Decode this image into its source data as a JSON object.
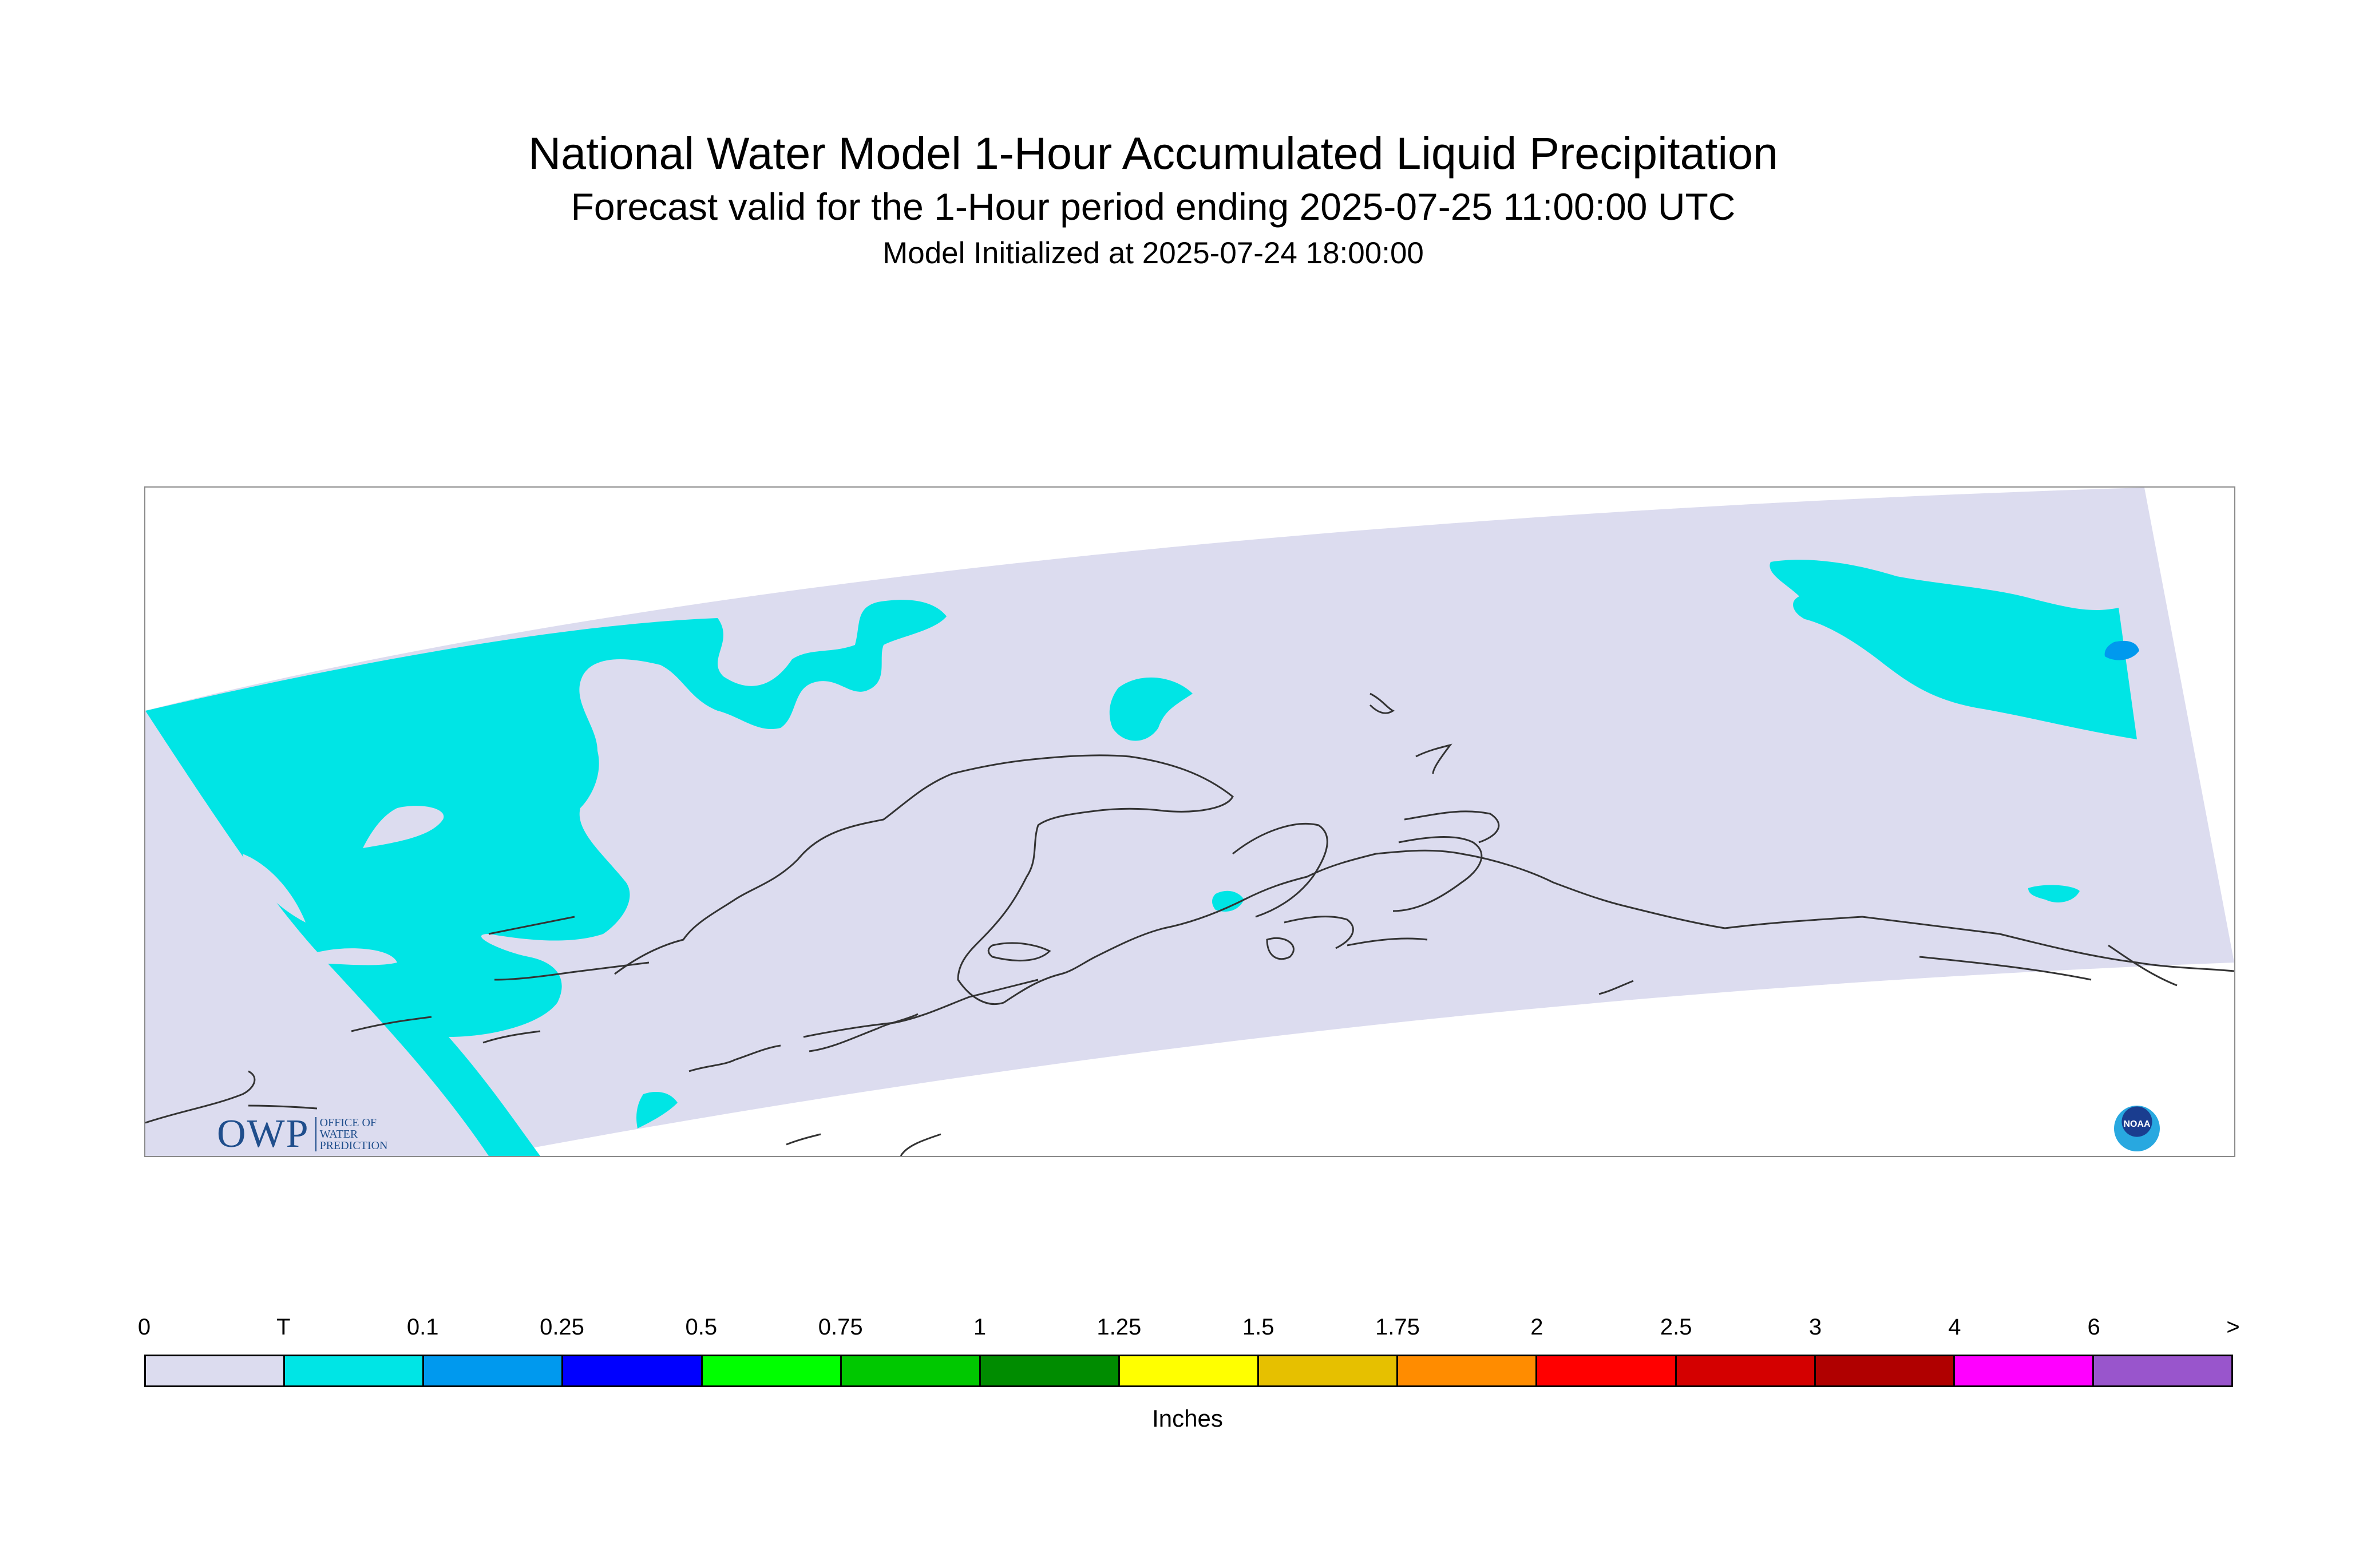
{
  "title": "National Water Model 1-Hour Accumulated Liquid Precipitation",
  "subtitle": "Forecast valid for the 1-Hour period ending 2025-07-25 11:00:00 UTC",
  "initialized": "Model Initialized at 2025-07-24 18:00:00",
  "logos": {
    "owp_letters": "OWP",
    "owp_text": [
      "OFFICE OF",
      "WATER",
      "PREDICTION"
    ],
    "noaa_text": "NOAA"
  },
  "legend": {
    "unit_label": "Inches",
    "tick_labels": [
      "0",
      "T",
      "0.1",
      "0.25",
      "0.5",
      "0.75",
      "1",
      "1.25",
      "1.5",
      "1.75",
      "2",
      "2.5",
      "3",
      "4",
      "6",
      ">"
    ],
    "colors": [
      "#dcdcef",
      "#00e5e5",
      "#0099ee",
      "#0000ff",
      "#00ff00",
      "#00c800",
      "#008c00",
      "#ffff00",
      "#e6c000",
      "#ff8c00",
      "#ff0000",
      "#d40000",
      "#b00000",
      "#ff00ff",
      "#9955cc"
    ]
  },
  "map_colors": {
    "domain_fill": "#dcdcef",
    "trace": "#00e5e5",
    "light": "#0099ee",
    "coast": "#333333"
  }
}
